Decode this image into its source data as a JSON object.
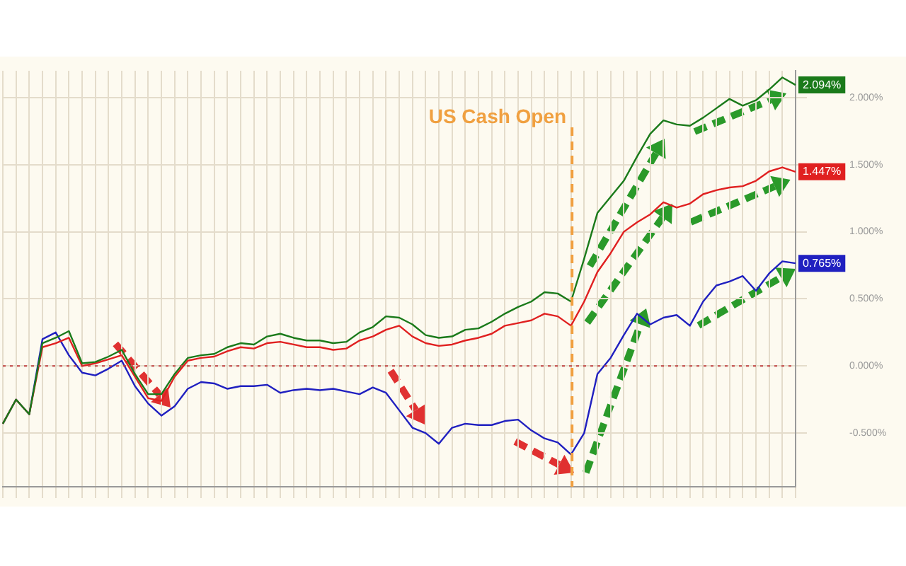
{
  "chart_data": {
    "type": "line",
    "categories": [
      null,
      null,
      null,
      null,
      null,
      null,
      null,
      null,
      null,
      null,
      null,
      null,
      null,
      null,
      null,
      null,
      null,
      null,
      null,
      null,
      null,
      null,
      null,
      null,
      null,
      null,
      null,
      null,
      null,
      null,
      null,
      null,
      null,
      null,
      null,
      null,
      null,
      null,
      null,
      null,
      null,
      null,
      null,
      null,
      null,
      null,
      null,
      null,
      null,
      null,
      null,
      null,
      null,
      null,
      null,
      null,
      null,
      null,
      null,
      null,
      null
    ],
    "series": [
      {
        "color": "#1a7a1a",
        "values": [
          -0.43,
          -0.25,
          -0.36,
          0.17,
          0.21,
          0.26,
          0.02,
          0.03,
          0.07,
          0.12,
          -0.06,
          -0.21,
          -0.21,
          -0.06,
          0.06,
          0.08,
          0.09,
          0.14,
          0.17,
          0.16,
          0.22,
          0.24,
          0.21,
          0.19,
          0.19,
          0.17,
          0.18,
          0.25,
          0.29,
          0.37,
          0.36,
          0.31,
          0.23,
          0.21,
          0.22,
          0.27,
          0.28,
          0.33,
          0.39,
          0.44,
          0.48,
          0.55,
          0.54,
          0.48,
          0.8,
          1.14,
          1.26,
          1.38,
          1.56,
          1.73,
          1.83,
          1.8,
          1.79,
          1.85,
          1.92,
          1.99,
          1.94,
          1.98,
          2.06,
          2.15,
          2.094
        ],
        "value_labels": [
          null,
          null,
          null,
          null,
          null,
          null,
          null,
          null,
          null,
          null,
          null,
          null,
          null,
          null,
          null,
          null,
          null,
          null,
          null,
          null,
          null,
          null,
          null,
          null,
          null,
          null,
          null,
          null,
          null,
          null,
          null,
          null,
          null,
          null,
          null,
          null,
          null,
          null,
          null,
          null,
          null,
          null,
          null,
          null,
          null,
          null,
          null,
          null,
          null,
          null,
          null,
          null,
          null,
          null,
          null,
          null,
          null,
          null,
          null,
          null,
          "2.094%"
        ]
      },
      {
        "color": "#e02020",
        "values": [
          -0.43,
          -0.25,
          -0.36,
          0.14,
          0.17,
          0.21,
          0.0,
          0.02,
          0.05,
          0.08,
          -0.08,
          -0.24,
          -0.26,
          -0.08,
          0.04,
          0.06,
          0.07,
          0.11,
          0.14,
          0.13,
          0.17,
          0.18,
          0.16,
          0.14,
          0.14,
          0.12,
          0.13,
          0.19,
          0.22,
          0.27,
          0.3,
          0.22,
          0.17,
          0.15,
          0.16,
          0.19,
          0.21,
          0.24,
          0.3,
          0.32,
          0.34,
          0.39,
          0.37,
          0.3,
          0.48,
          0.7,
          0.84,
          1.0,
          1.07,
          1.13,
          1.22,
          1.18,
          1.21,
          1.28,
          1.31,
          1.33,
          1.34,
          1.38,
          1.45,
          1.48,
          1.447
        ],
        "value_labels": [
          null,
          null,
          null,
          null,
          null,
          null,
          null,
          null,
          null,
          null,
          null,
          null,
          null,
          null,
          null,
          null,
          null,
          null,
          null,
          null,
          null,
          null,
          null,
          null,
          null,
          null,
          null,
          null,
          null,
          null,
          null,
          null,
          null,
          null,
          null,
          null,
          null,
          null,
          null,
          null,
          null,
          null,
          null,
          null,
          null,
          null,
          null,
          null,
          null,
          null,
          null,
          null,
          null,
          null,
          null,
          null,
          null,
          null,
          null,
          null,
          "1.447%"
        ]
      },
      {
        "color": "#2020c0",
        "values": [
          -0.43,
          -0.25,
          -0.36,
          0.2,
          0.25,
          0.08,
          -0.05,
          -0.07,
          -0.02,
          0.04,
          -0.15,
          -0.28,
          -0.37,
          -0.3,
          -0.17,
          -0.12,
          -0.13,
          -0.17,
          -0.15,
          -0.15,
          -0.14,
          -0.2,
          -0.18,
          -0.17,
          -0.18,
          -0.17,
          -0.19,
          -0.21,
          -0.16,
          -0.2,
          -0.33,
          -0.46,
          -0.5,
          -0.58,
          -0.46,
          -0.43,
          -0.44,
          -0.44,
          -0.41,
          -0.4,
          -0.48,
          -0.54,
          -0.57,
          -0.66,
          -0.5,
          -0.06,
          0.06,
          0.23,
          0.39,
          0.31,
          0.36,
          0.38,
          0.3,
          0.48,
          0.6,
          0.63,
          0.67,
          0.56,
          0.69,
          0.78,
          0.765
        ],
        "value_labels": [
          null,
          null,
          null,
          null,
          null,
          null,
          null,
          null,
          null,
          null,
          null,
          null,
          null,
          null,
          null,
          null,
          null,
          null,
          null,
          null,
          null,
          null,
          null,
          null,
          null,
          null,
          null,
          null,
          null,
          null,
          null,
          null,
          null,
          null,
          null,
          null,
          null,
          null,
          null,
          null,
          null,
          null,
          null,
          null,
          null,
          null,
          null,
          null,
          null,
          null,
          null,
          null,
          null,
          null,
          null,
          null,
          null,
          null,
          null,
          null,
          "0.765%"
        ]
      }
    ],
    "ylim": [
      -0.9,
      2.2
    ],
    "yticks": [
      {
        "value": -0.5,
        "label": "-0.500%"
      },
      {
        "value": 0,
        "label": "0.000%"
      },
      {
        "value": 0.5,
        "label": "0.500%"
      },
      {
        "value": 1,
        "label": "1.000%"
      },
      {
        "value": 1.5,
        "label": "1.500%"
      },
      {
        "value": 2,
        "label": "2.000%"
      }
    ],
    "ref_lines": [
      {
        "axis": "y",
        "value": 0,
        "color": "#c04040",
        "line_style": "dotted"
      }
    ],
    "annotations": [
      "US Cash Open"
    ],
    "grid": true,
    "legend": false,
    "tick_labels": "y",
    "marker": "none",
    "line_style": "solid"
  }
}
